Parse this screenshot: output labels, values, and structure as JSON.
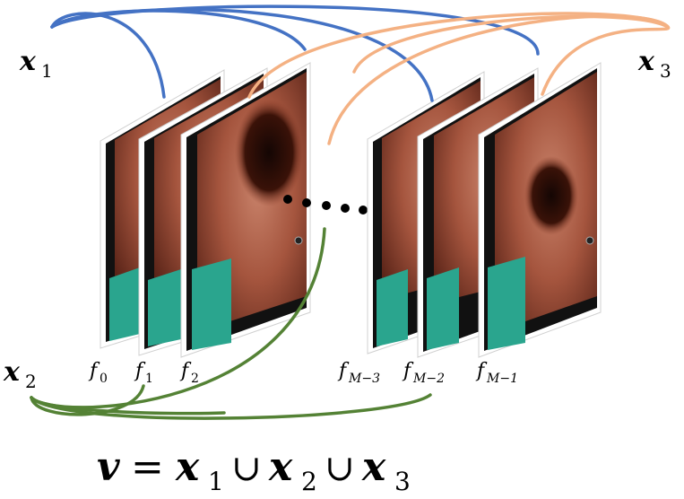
{
  "vectors": {
    "x1": {
      "letter": "x",
      "sub": "1",
      "color": "#4472c4"
    },
    "x2": {
      "letter": "x",
      "sub": "2",
      "color": "#548235"
    },
    "x3": {
      "letter": "x",
      "sub": "3",
      "color": "#f4b183"
    }
  },
  "frames": {
    "f0": {
      "letter": "f",
      "sub": "0"
    },
    "f1": {
      "letter": "f",
      "sub": "1"
    },
    "f2": {
      "letter": "f",
      "sub": "2"
    },
    "fm3": {
      "letter": "f",
      "sub": "M−3"
    },
    "fm2": {
      "letter": "f",
      "sub": "M−2"
    },
    "fm1": {
      "letter": "f",
      "sub": "M−1"
    }
  },
  "equation": {
    "v": "v",
    "eq": "=",
    "x": "x",
    "s1": "1",
    "s2": "2",
    "s3": "3",
    "union": "∪"
  },
  "colors": {
    "frame_bg": "#111111",
    "tissue": "#a0503a",
    "overlay": "#2aa58e"
  }
}
